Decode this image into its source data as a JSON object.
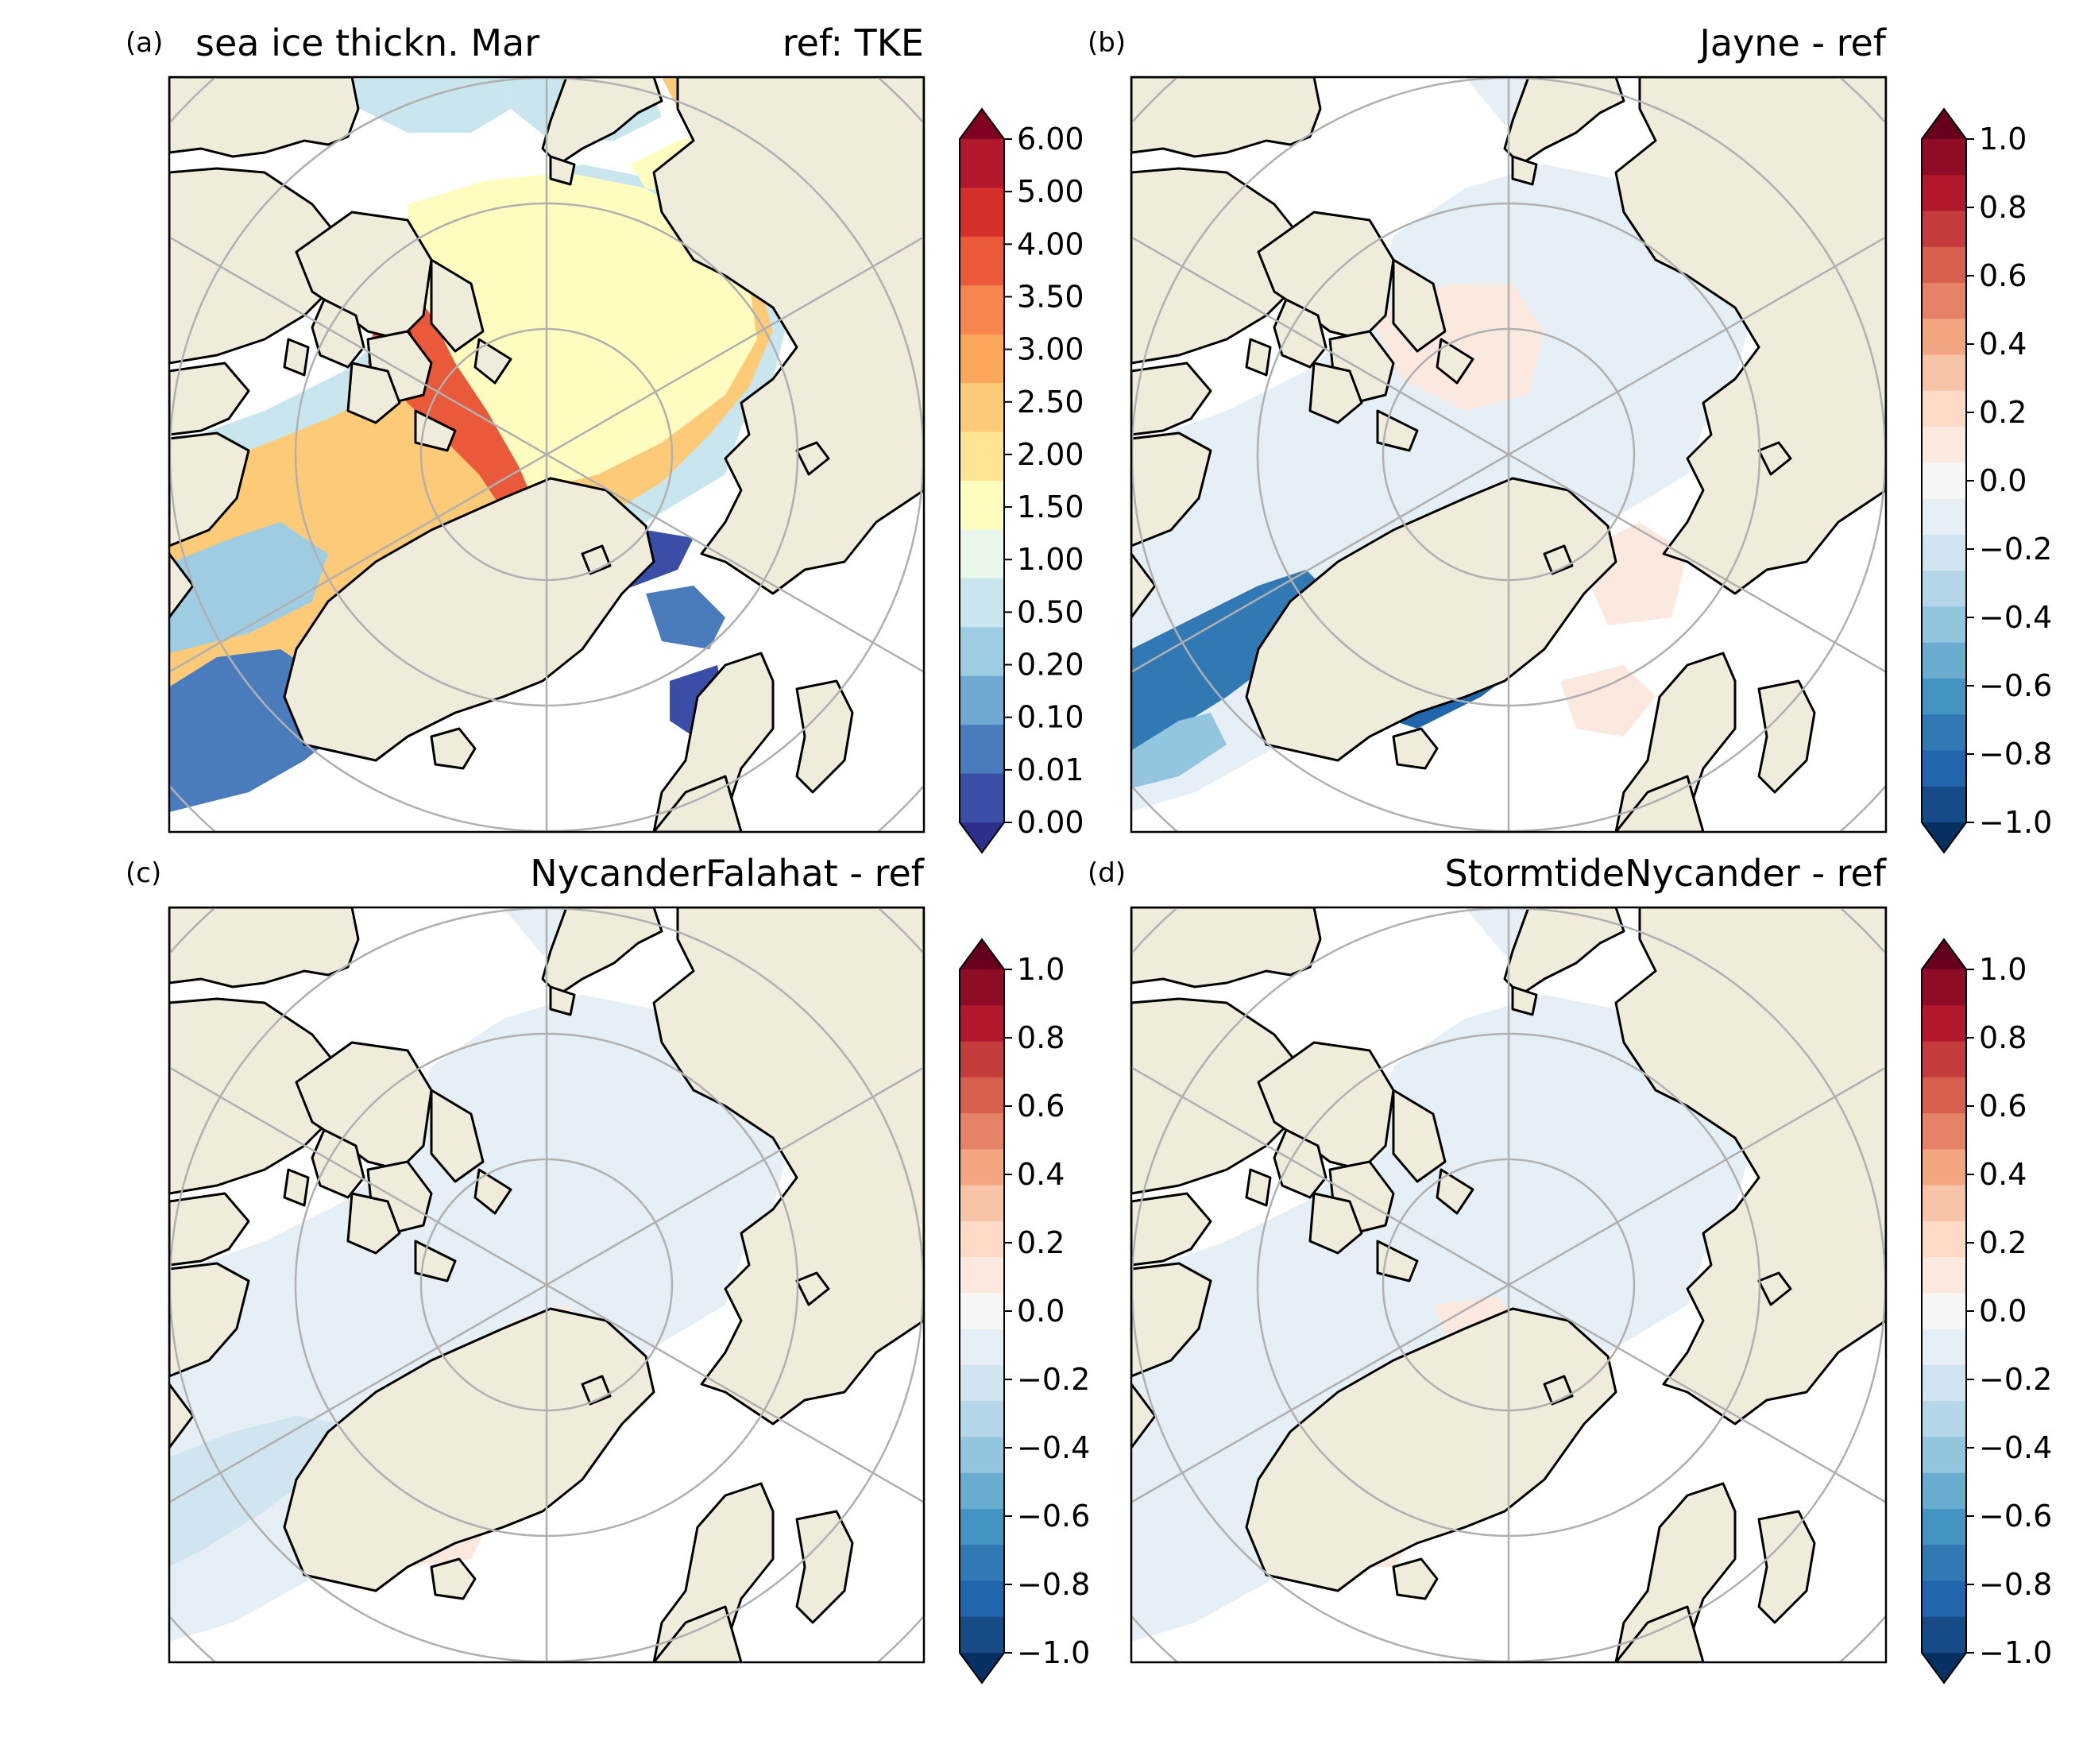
{
  "figure": {
    "panels": [
      {
        "letter": "(a)",
        "title_left": "sea ice thickn. Mar",
        "title_right": "ref: TKE",
        "colorbar": {
          "ticks": [
            "6.00",
            "5.00",
            "4.00",
            "3.50",
            "3.00",
            "2.50",
            "2.00",
            "1.50",
            "1.00",
            "0.50",
            "0.20",
            "0.10",
            "0.01",
            "0.00"
          ],
          "colors": [
            "#7f0020",
            "#b2182b",
            "#d6302d",
            "#e9593a",
            "#f6864d",
            "#fca75c",
            "#fdca78",
            "#fee593",
            "#fffcbf",
            "#e9f6ea",
            "#c9e6ee",
            "#9ecde3",
            "#6fa8d0",
            "#4a7cbd",
            "#3a4ea8",
            "#2e2f8c"
          ]
        },
        "map_kind": "absolute"
      },
      {
        "letter": "(b)",
        "title_left": "",
        "title_right": "Jayne - ref",
        "colorbar": {
          "ticks": [
            "1.0",
            "0.8",
            "0.6",
            "0.4",
            "0.2",
            "0.0",
            "−0.2",
            "−0.4",
            "−0.6",
            "−0.8",
            "−1.0"
          ],
          "colors": [
            "#67001f",
            "#8e0c25",
            "#b2182b",
            "#c43c3c",
            "#d6604d",
            "#e58267",
            "#f4a582",
            "#f8c4a8",
            "#fddbc7",
            "#fbe9df",
            "#f7f7f7",
            "#e6eff5",
            "#d1e5f0",
            "#b5d6e8",
            "#92c5de",
            "#6aaccf",
            "#4393c3",
            "#3179b5",
            "#2166ac",
            "#164b86",
            "#053061"
          ]
        },
        "map_kind": "jayne"
      },
      {
        "letter": "(c)",
        "title_left": "",
        "title_right": "NycanderFalahat - ref",
        "colorbar": {
          "ticks": [
            "1.0",
            "0.8",
            "0.6",
            "0.4",
            "0.2",
            "0.0",
            "−0.2",
            "−0.4",
            "−0.6",
            "−0.8",
            "−1.0"
          ],
          "colors": [
            "#67001f",
            "#8e0c25",
            "#b2182b",
            "#c43c3c",
            "#d6604d",
            "#e58267",
            "#f4a582",
            "#f8c4a8",
            "#fddbc7",
            "#fbe9df",
            "#f7f7f7",
            "#e6eff5",
            "#d1e5f0",
            "#b5d6e8",
            "#92c5de",
            "#6aaccf",
            "#4393c3",
            "#3179b5",
            "#2166ac",
            "#164b86",
            "#053061"
          ]
        },
        "map_kind": "nycander"
      },
      {
        "letter": "(d)",
        "title_left": "",
        "title_right": "StormtideNycander - ref",
        "colorbar": {
          "ticks": [
            "1.0",
            "0.8",
            "0.6",
            "0.4",
            "0.2",
            "0.0",
            "−0.2",
            "−0.4",
            "−0.6",
            "−0.8",
            "−1.0"
          ],
          "colors": [
            "#67001f",
            "#8e0c25",
            "#b2182b",
            "#c43c3c",
            "#d6604d",
            "#e58267",
            "#f4a582",
            "#f8c4a8",
            "#fddbc7",
            "#fbe9df",
            "#f7f7f7",
            "#e6eff5",
            "#d1e5f0",
            "#b5d6e8",
            "#92c5de",
            "#6aaccf",
            "#4393c3",
            "#3179b5",
            "#2166ac",
            "#164b86",
            "#053061"
          ]
        },
        "map_kind": "stormtide"
      }
    ],
    "colors": {
      "land": "#efecdc",
      "ocean_open": "#ffffff",
      "coast": "#000000",
      "grid": "#b0b0b0"
    }
  }
}
